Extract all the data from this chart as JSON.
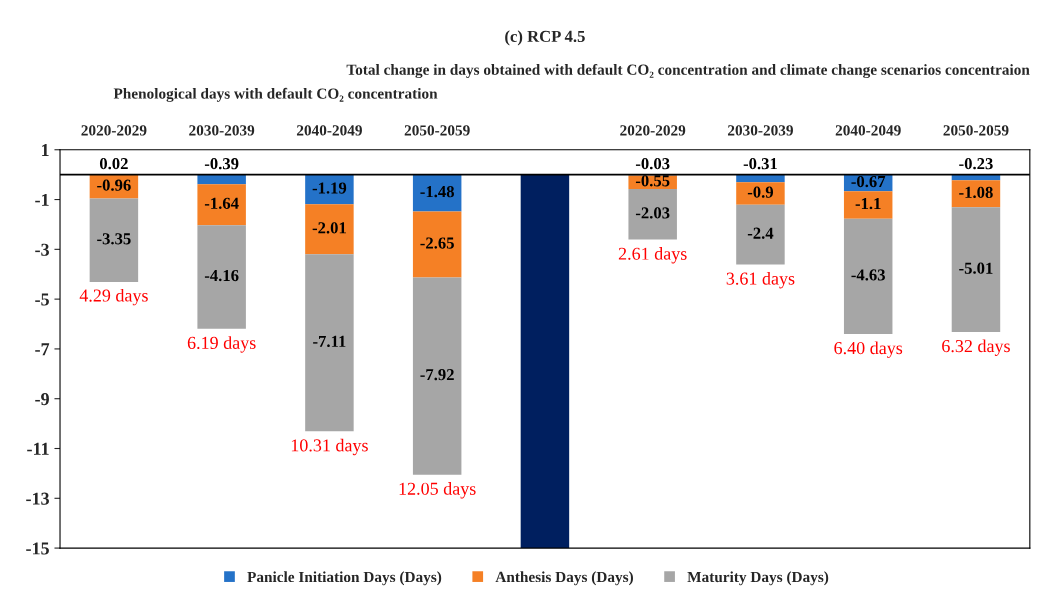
{
  "chart_data": {
    "type": "bar",
    "stacked": true,
    "title": "(c) RCP 4.5",
    "categories": [
      "2020-2029",
      "2030-2039",
      "2040-2049",
      "2050-2059",
      null,
      "2020-2029",
      "2030-2039",
      "2040-2049",
      "2050-2059"
    ],
    "series": [
      {
        "name": "Panicle Initiation Days (Days)",
        "color": "#2472c8",
        "values": [
          0.02,
          -0.39,
          -1.19,
          -1.48,
          null,
          -0.03,
          -0.31,
          -0.67,
          -0.23
        ],
        "value_labels": [
          "0.02",
          "-0.39",
          "-1.19",
          "-1.48",
          null,
          "-0.03",
          "-0.31",
          "-0.67",
          "-0.23"
        ]
      },
      {
        "name": "Anthesis Days (Days)",
        "color": "#f58025",
        "values": [
          -0.96,
          -1.64,
          -2.01,
          -2.65,
          null,
          -0.55,
          -0.9,
          -1.1,
          -1.08
        ],
        "value_labels": [
          "-0.96",
          "-1.64",
          "-2.01",
          "-2.65",
          null,
          "-0.55",
          "-0.9",
          "-1.1",
          "-1.08"
        ]
      },
      {
        "name": "Maturity Days (Days)",
        "color": "#a6a6a6",
        "values": [
          -3.35,
          -4.16,
          -7.11,
          -7.92,
          null,
          -2.03,
          -2.4,
          -4.63,
          -5.01
        ],
        "value_labels": [
          "-3.35",
          "-4.16",
          "-7.11",
          "-7.92",
          null,
          "-2.03",
          "-2.4",
          "-4.63",
          "-5.01"
        ]
      },
      {
        "color": "#001f5f",
        "values": [
          null,
          null,
          null,
          null,
          -15,
          null,
          null,
          null,
          null
        ]
      }
    ],
    "annotations": [
      "Phenological days with default CO₂ concentration",
      "Total change in days obtained with default CO₂ concentration and climate change scenarios concentraion",
      {
        "text": "4.29 days",
        "x": "2020-2029",
        "y": -4.29
      },
      {
        "text": "6.19 days",
        "x": "2030-2039",
        "y": -6.19
      },
      {
        "text": "10.31 days",
        "x": "2040-2049",
        "y": -10.31
      },
      {
        "text": "12.05 days",
        "x": "2050-2059",
        "y": -12.05
      },
      "2.61 days",
      "3.61 days",
      "6.40 days",
      "6.32 days"
    ],
    "ylim": [
      -15,
      1
    ],
    "yticks": [
      1,
      -1,
      -3,
      -5,
      -7,
      -9,
      -11,
      -13,
      -15
    ],
    "ref_lines": [
      {
        "axis": "y",
        "value": 0,
        "color": "#000000"
      }
    ],
    "grid": false,
    "legend": "bottom"
  }
}
